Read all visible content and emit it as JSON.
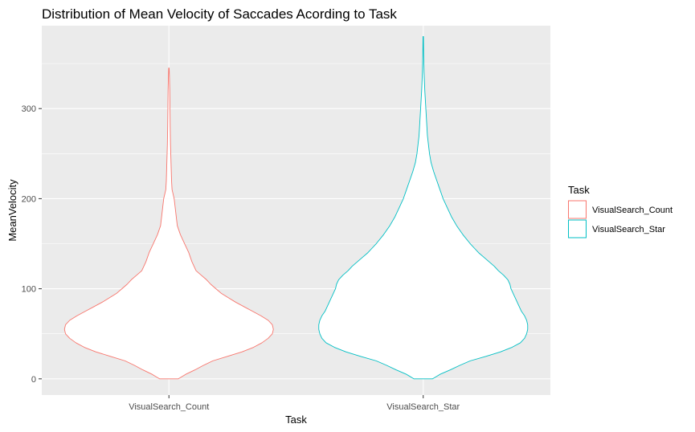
{
  "chart_data": {
    "type": "violin",
    "title": "Distribution of Mean Velocity of Saccades Acording to Task",
    "xlabel": "Task",
    "ylabel": "MeanVelocity",
    "categories": [
      "VisualSearch_Count",
      "VisualSearch_Star"
    ],
    "y_ticks": [
      0,
      100,
      200,
      300
    ],
    "ylim": [
      -18,
      392
    ],
    "grid": true,
    "legend": {
      "title": "Task",
      "position": "right",
      "entries": [
        "VisualSearch_Count",
        "VisualSearch_Star"
      ]
    },
    "colors": {
      "VisualSearch_Count": "#F8766D",
      "VisualSearch_Star": "#00BFC4",
      "panel_background": "#EBEBEB",
      "grid": "#FFFFFF"
    },
    "series": [
      {
        "name": "VisualSearch_Count",
        "density_profile": [
          [
            0,
            0.09
          ],
          [
            5,
            0.16
          ],
          [
            10,
            0.25
          ],
          [
            15,
            0.33
          ],
          [
            20,
            0.42
          ],
          [
            25,
            0.56
          ],
          [
            30,
            0.7
          ],
          [
            35,
            0.81
          ],
          [
            40,
            0.89
          ],
          [
            45,
            0.95
          ],
          [
            50,
            0.99
          ],
          [
            55,
            1.0
          ],
          [
            60,
            0.99
          ],
          [
            65,
            0.95
          ],
          [
            70,
            0.88
          ],
          [
            75,
            0.8
          ],
          [
            80,
            0.72
          ],
          [
            85,
            0.64
          ],
          [
            90,
            0.57
          ],
          [
            95,
            0.5
          ],
          [
            100,
            0.45
          ],
          [
            105,
            0.4
          ],
          [
            110,
            0.36
          ],
          [
            115,
            0.31
          ],
          [
            120,
            0.26
          ],
          [
            130,
            0.22
          ],
          [
            140,
            0.19
          ],
          [
            150,
            0.15
          ],
          [
            160,
            0.11
          ],
          [
            170,
            0.08
          ],
          [
            180,
            0.07
          ],
          [
            190,
            0.06
          ],
          [
            200,
            0.05
          ],
          [
            210,
            0.03
          ],
          [
            220,
            0.025
          ],
          [
            240,
            0.02
          ],
          [
            260,
            0.015
          ],
          [
            280,
            0.012
          ],
          [
            300,
            0.01
          ],
          [
            320,
            0.008
          ],
          [
            335,
            0.005
          ],
          [
            345,
            0.002
          ]
        ]
      },
      {
        "name": "VisualSearch_Star",
        "density_profile": [
          [
            0,
            0.09
          ],
          [
            5,
            0.16
          ],
          [
            10,
            0.26
          ],
          [
            15,
            0.35
          ],
          [
            20,
            0.45
          ],
          [
            25,
            0.6
          ],
          [
            30,
            0.74
          ],
          [
            35,
            0.85
          ],
          [
            40,
            0.93
          ],
          [
            45,
            0.97
          ],
          [
            50,
            0.99
          ],
          [
            55,
            1.0
          ],
          [
            60,
            1.0
          ],
          [
            65,
            0.99
          ],
          [
            70,
            0.97
          ],
          [
            75,
            0.94
          ],
          [
            80,
            0.92
          ],
          [
            85,
            0.9
          ],
          [
            90,
            0.88
          ],
          [
            95,
            0.86
          ],
          [
            100,
            0.84
          ],
          [
            105,
            0.83
          ],
          [
            110,
            0.81
          ],
          [
            115,
            0.77
          ],
          [
            120,
            0.72
          ],
          [
            125,
            0.68
          ],
          [
            130,
            0.63
          ],
          [
            135,
            0.58
          ],
          [
            140,
            0.53
          ],
          [
            145,
            0.49
          ],
          [
            150,
            0.45
          ],
          [
            160,
            0.38
          ],
          [
            170,
            0.32
          ],
          [
            180,
            0.27
          ],
          [
            190,
            0.23
          ],
          [
            200,
            0.19
          ],
          [
            210,
            0.16
          ],
          [
            220,
            0.13
          ],
          [
            230,
            0.1
          ],
          [
            240,
            0.075
          ],
          [
            250,
            0.06
          ],
          [
            260,
            0.05
          ],
          [
            270,
            0.04
          ],
          [
            280,
            0.035
          ],
          [
            290,
            0.03
          ],
          [
            300,
            0.025
          ],
          [
            320,
            0.015
          ],
          [
            340,
            0.008
          ],
          [
            360,
            0.004
          ],
          [
            380,
            0.002
          ]
        ]
      }
    ]
  }
}
